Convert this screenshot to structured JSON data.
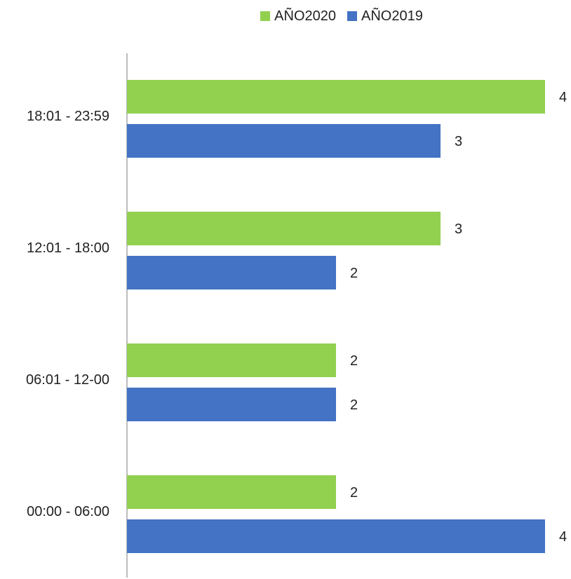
{
  "chart_data": {
    "type": "bar",
    "orientation": "horizontal",
    "categories": [
      "00:00 - 06:00",
      "06:01 - 12-00",
      "12:01 - 18:00",
      "18:01 - 23:59"
    ],
    "series": [
      {
        "name": "AÑO2020",
        "color": "#92d050",
        "values": [
          2,
          2,
          3,
          4
        ]
      },
      {
        "name": "AÑO2019",
        "color": "#4472c4",
        "values": [
          4,
          2,
          2,
          3
        ]
      }
    ],
    "xlim": [
      0,
      4
    ],
    "grid": false,
    "legend_position": "top",
    "data_labels": true
  }
}
